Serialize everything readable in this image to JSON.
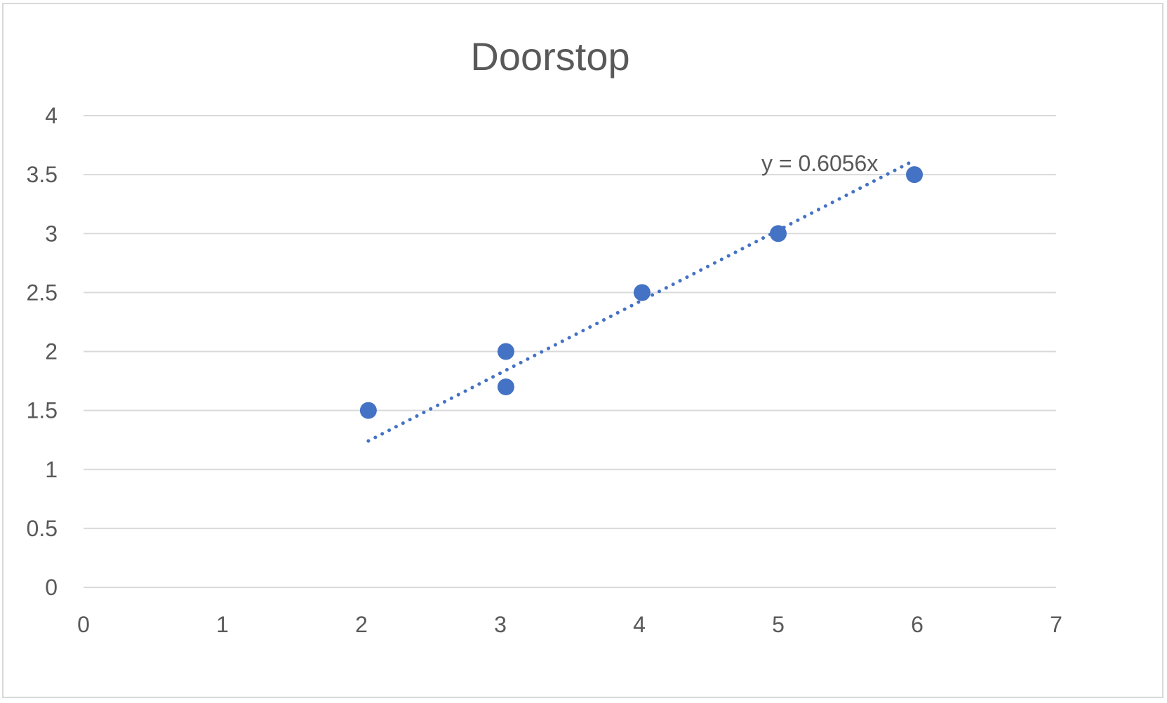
{
  "chart_data": {
    "type": "scatter",
    "title": "Doorstop",
    "xlabel": "",
    "ylabel": "",
    "xlim": [
      0,
      7
    ],
    "ylim": [
      0,
      4
    ],
    "x_ticks": [
      "0",
      "1",
      "2",
      "3",
      "4",
      "5",
      "6",
      "7"
    ],
    "y_ticks": [
      "0",
      "0.5",
      "1",
      "1.5",
      "2",
      "2.5",
      "3",
      "3.5",
      "4"
    ],
    "grid": "horizontal",
    "legend": "none",
    "series": [
      {
        "x": [
          2.05,
          3.04,
          3.04,
          4.02,
          5.0,
          5.98
        ],
        "y": [
          1.5,
          2.0,
          1.7,
          2.5,
          3.0,
          3.5
        ],
        "color": "#4472c4"
      }
    ],
    "trendline": {
      "type": "linear",
      "style": "dotted",
      "equation": "y = 0.6056x",
      "slope": 0.6056,
      "x_range": [
        2.05,
        5.98
      ],
      "color": "#4472c4"
    }
  }
}
